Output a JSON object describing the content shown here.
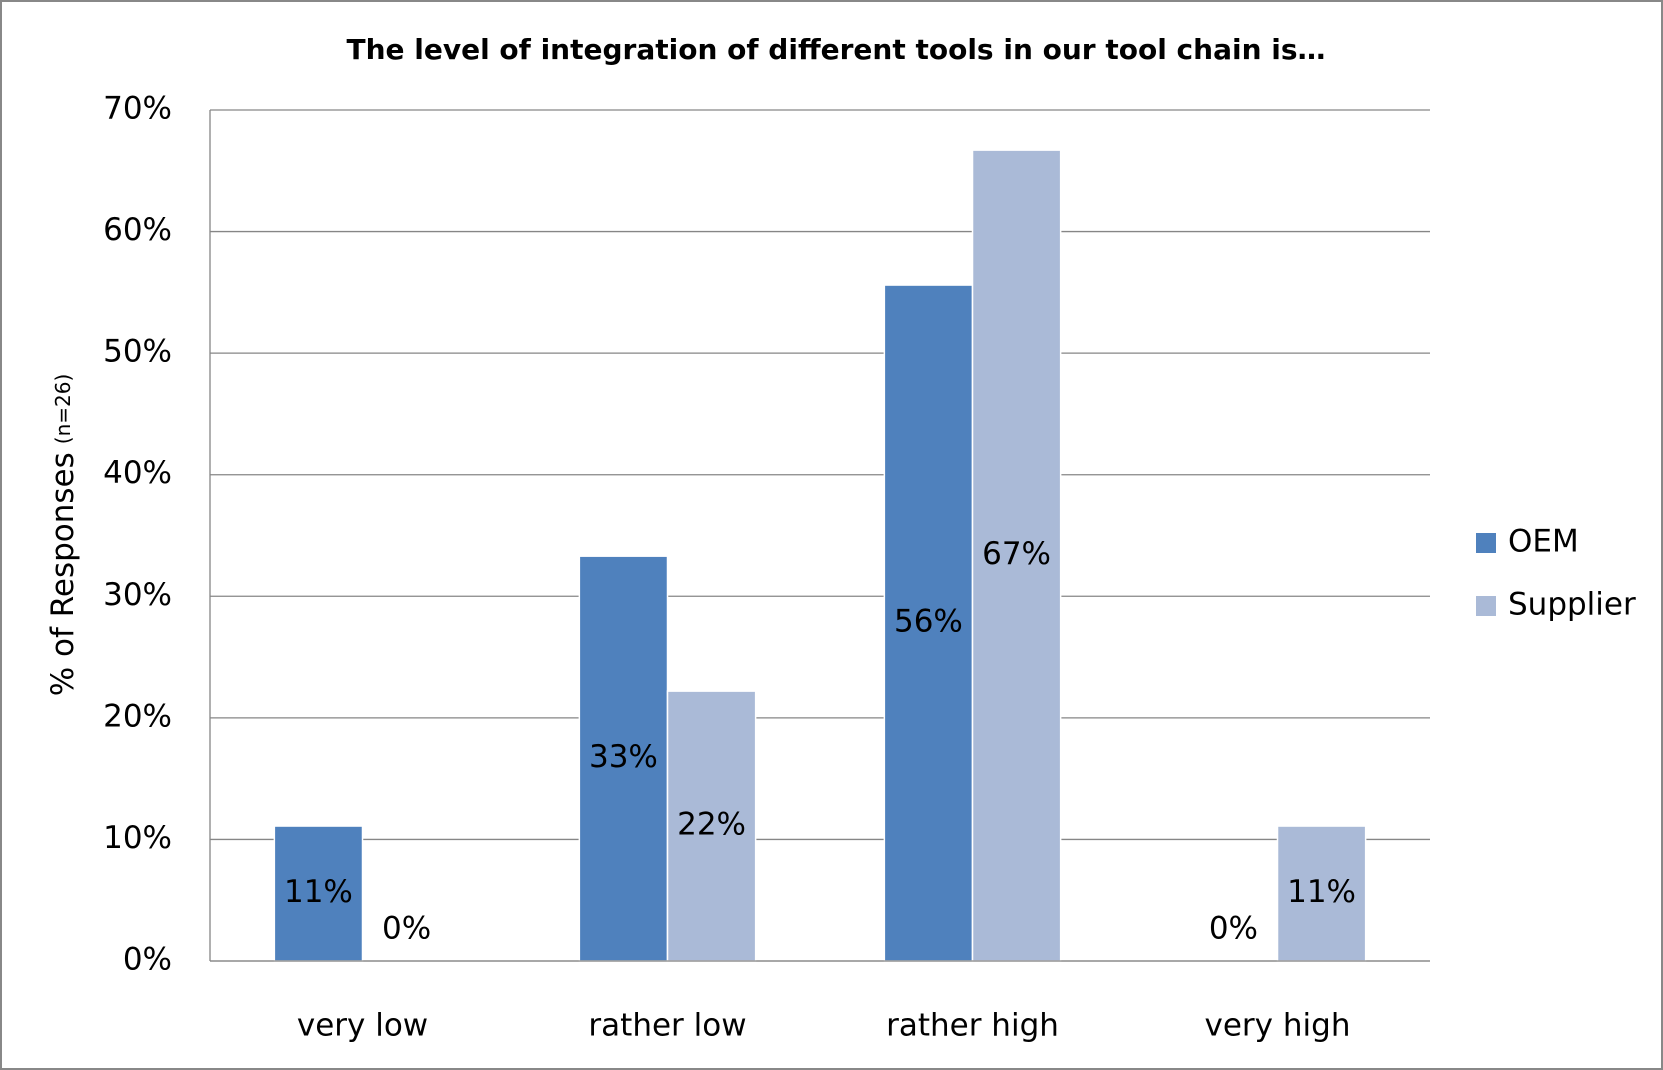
{
  "chart_data": {
    "type": "bar",
    "title": "The level of integration of different tools in our tool chain is…",
    "y_label": "% of Responses",
    "y_label_note": "(n=26)",
    "categories": [
      "very low",
      "rather low",
      "rather high",
      "very high"
    ],
    "series": [
      {
        "name": "OEM",
        "color": "#4f81bd",
        "values": [
          11.1,
          33.3,
          55.6,
          0
        ],
        "value_labels": [
          "11%",
          "33%",
          "56%",
          "0%"
        ]
      },
      {
        "name": "Supplier",
        "color": "#aabad7",
        "values": [
          0,
          22.2,
          66.7,
          11.1
        ],
        "value_labels": [
          "0%",
          "22%",
          "67%",
          "11%"
        ]
      }
    ],
    "ylim": [
      0,
      70
    ],
    "yticks": [
      {
        "value": 0,
        "label": "0%"
      },
      {
        "value": 10,
        "label": "10%"
      },
      {
        "value": 20,
        "label": "20%"
      },
      {
        "value": 30,
        "label": "30%"
      },
      {
        "value": 40,
        "label": "40%"
      },
      {
        "value": 50,
        "label": "50%"
      },
      {
        "value": 60,
        "label": "60%"
      },
      {
        "value": 70,
        "label": "70%"
      }
    ],
    "grid": true,
    "legend": "right"
  }
}
